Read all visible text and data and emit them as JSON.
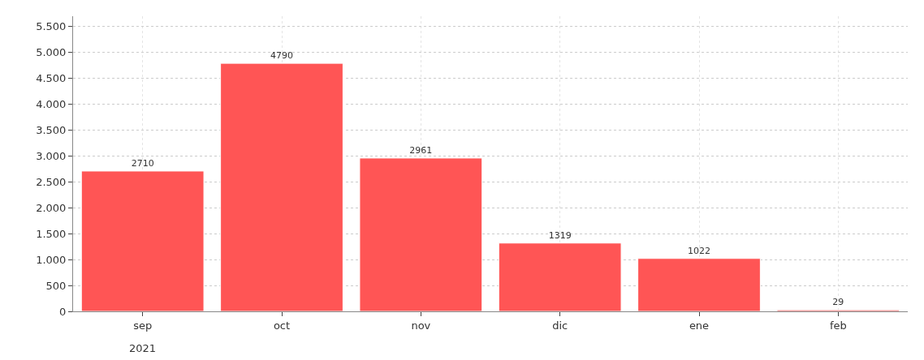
{
  "chart_data": {
    "type": "bar",
    "categories": [
      "sep",
      "oct",
      "nov",
      "dic",
      "ene",
      "feb"
    ],
    "values": [
      2710,
      4790,
      2961,
      1319,
      1022,
      29
    ],
    "color": "#ff5555",
    "data_labels": true,
    "ylim": [
      0,
      5700
    ],
    "yticks": [
      0,
      500,
      {
        "value": 1000,
        "label": "1.000"
      },
      {
        "value": 1500,
        "label": "1.500"
      },
      {
        "value": 2000,
        "label": "2.000"
      },
      {
        "value": 2500,
        "label": "2.500"
      },
      {
        "value": 3000,
        "label": "3.000"
      },
      {
        "value": 3500,
        "label": "3.500"
      },
      {
        "value": 4000,
        "label": "4.000"
      },
      {
        "value": 4500,
        "label": "4.500"
      },
      {
        "value": 5000,
        "label": "5.000"
      },
      {
        "value": 5500,
        "label": "5.500"
      }
    ],
    "grid": true,
    "annotations": [
      "2021"
    ]
  }
}
